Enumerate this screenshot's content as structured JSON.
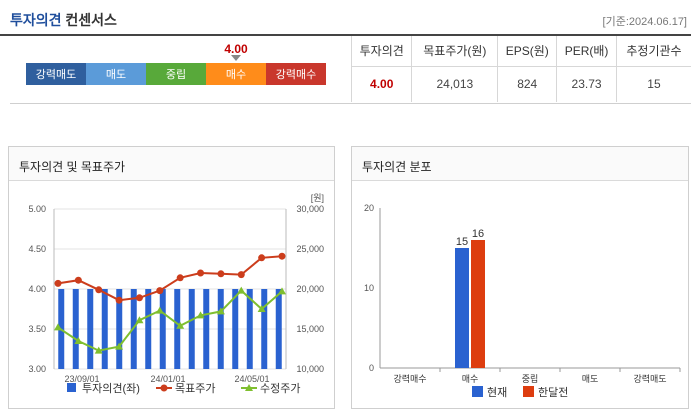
{
  "header": {
    "title_part1": "투자의견",
    "title_part2": "컨센서스",
    "date": "[기준:2024.06.17]"
  },
  "consensus": {
    "score": "4.00",
    "score_value": 4.0,
    "scale": [
      {
        "label": "강력매도",
        "color": "#2f5f9e"
      },
      {
        "label": "매도",
        "color": "#5b9bd9"
      },
      {
        "label": "중립",
        "color": "#58a93a"
      },
      {
        "label": "매수",
        "color": "#ff8c1a"
      },
      {
        "label": "강력매수",
        "color": "#c9372c"
      }
    ],
    "table_headers": [
      "투자의견",
      "목표주가(원)",
      "EPS(원)",
      "PER(배)",
      "추정기관수"
    ],
    "table_values": [
      "4.00",
      "24,013",
      "824",
      "23.73",
      "15"
    ]
  },
  "panel_left": {
    "title": "투자의견 및 목표주가"
  },
  "panel_right": {
    "title": "투자의견 분포"
  },
  "chart_data": [
    {
      "type": "bar+line",
      "title": "투자의견 및 목표주가",
      "y_left": {
        "ylim": [
          3.0,
          5.0
        ],
        "ticks": [
          "5.00",
          "4.50",
          "4.00",
          "3.50",
          "3.00"
        ]
      },
      "y_right": {
        "ylim": [
          10000,
          30000
        ],
        "ticks": [
          "30,000",
          "25,000",
          "20,000",
          "15,000",
          "10,000"
        ],
        "unit": "[원]"
      },
      "x_tick_labels": [
        "23/09/01",
        "24/01/01",
        "24/05/01"
      ],
      "series": [
        {
          "name": "투자의견(좌)",
          "type": "bar",
          "color": "#2a62d0",
          "values": [
            4,
            4,
            4,
            4,
            4,
            4,
            4,
            4,
            4,
            4,
            4,
            4,
            4,
            4,
            4,
            4
          ]
        },
        {
          "name": "목표주가",
          "type": "line",
          "color": "#cc3d1c",
          "values": [
            20700,
            21100,
            19900,
            18600,
            18900,
            19800,
            21400,
            22000,
            21900,
            21800,
            23900,
            24100
          ]
        },
        {
          "name": "수정주가",
          "type": "line",
          "color": "#7fbf2f",
          "values": [
            15200,
            13500,
            12300,
            12800,
            16100,
            17300,
            15400,
            16700,
            17200,
            19800,
            17500,
            19700
          ]
        }
      ],
      "legend": [
        "투자의견(좌)",
        "목표주가",
        "수정주가"
      ]
    },
    {
      "type": "bar",
      "title": "투자의견 분포",
      "categories": [
        "강력매수",
        "매수",
        "중립",
        "매도",
        "강력매도"
      ],
      "ylim": [
        0,
        20
      ],
      "y_ticks": [
        "20",
        "10",
        "0"
      ],
      "series": [
        {
          "name": "현재",
          "color": "#2a62d0",
          "values": [
            0,
            15,
            0,
            0,
            0
          ]
        },
        {
          "name": "한달전",
          "color": "#dd3d0f",
          "values": [
            0,
            16,
            0,
            0,
            0
          ]
        }
      ],
      "legend": [
        "현재",
        "한달전"
      ]
    }
  ]
}
